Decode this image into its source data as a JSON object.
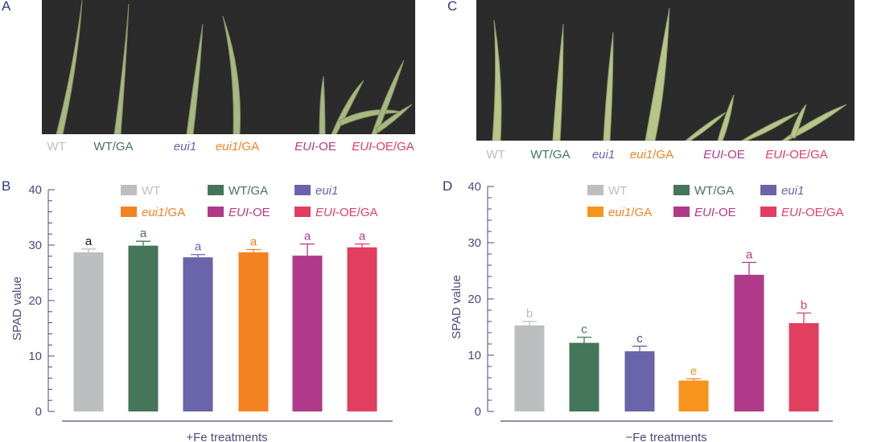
{
  "panels": {
    "a": "A",
    "b": "B",
    "c": "C",
    "d": "D"
  },
  "genotypes": [
    {
      "italic": "",
      "rest": "WT",
      "color": "#bcbec0"
    },
    {
      "italic": "",
      "rest": "WT/GA",
      "color": "#45755a"
    },
    {
      "italic": "eui1",
      "rest": "",
      "color": "#6a64aa"
    },
    {
      "italic": "eui1",
      "rest": "/GA",
      "color": "#f58220"
    },
    {
      "italic": "EUI",
      "rest": "-OE",
      "color": "#b03a8a"
    },
    {
      "italic": "EUI",
      "rest": "-OE/GA",
      "color": "#e23e5f"
    }
  ],
  "chart_data": [
    {
      "panel": "B",
      "type": "bar",
      "categories": [
        "WT",
        "WT/GA",
        "eui1",
        "eui1/GA",
        "EUI-OE",
        "EUI-OE/GA"
      ],
      "values": [
        28.7,
        29.9,
        27.8,
        28.7,
        28.1,
        29.6
      ],
      "errors": [
        0.6,
        0.8,
        0.5,
        0.5,
        2.1,
        0.6
      ],
      "significance": [
        "a",
        "a",
        "a",
        "a",
        "a",
        "a"
      ],
      "significance_colors": [
        "#111111",
        "#45755a",
        "#6a64aa",
        "#f58220",
        "#b03a8a",
        "#b03a8a"
      ],
      "xlabel": "+Fe treatments",
      "ylabel": "SPAD value",
      "ylim": [
        0,
        40
      ],
      "yticks": [
        "0",
        "10",
        "20",
        "30",
        "40"
      ],
      "legend": "top",
      "grid": false
    },
    {
      "panel": "D",
      "type": "bar",
      "categories": [
        "WT",
        "WT/GA",
        "eui1",
        "eui1/GA",
        "EUI-OE",
        "EUI-OE/GA"
      ],
      "values": [
        15.3,
        12.2,
        10.7,
        5.5,
        24.3,
        15.7
      ],
      "errors": [
        0.7,
        1.0,
        0.9,
        0.3,
        2.2,
        1.8
      ],
      "significance": [
        "b",
        "c",
        "c",
        "e",
        "a",
        "b"
      ],
      "significance_colors": [
        "#bcbec0",
        "#45755a",
        "#4a4a80",
        "#f7941d",
        "#b03a8a",
        "#e23e5f"
      ],
      "xlabel": "−Fe treatments",
      "ylabel": "SPAD value",
      "ylim": [
        0,
        40
      ],
      "yticks": [
        "0",
        "10",
        "20",
        "30",
        "40"
      ],
      "legend": "top",
      "grid": false
    }
  ]
}
